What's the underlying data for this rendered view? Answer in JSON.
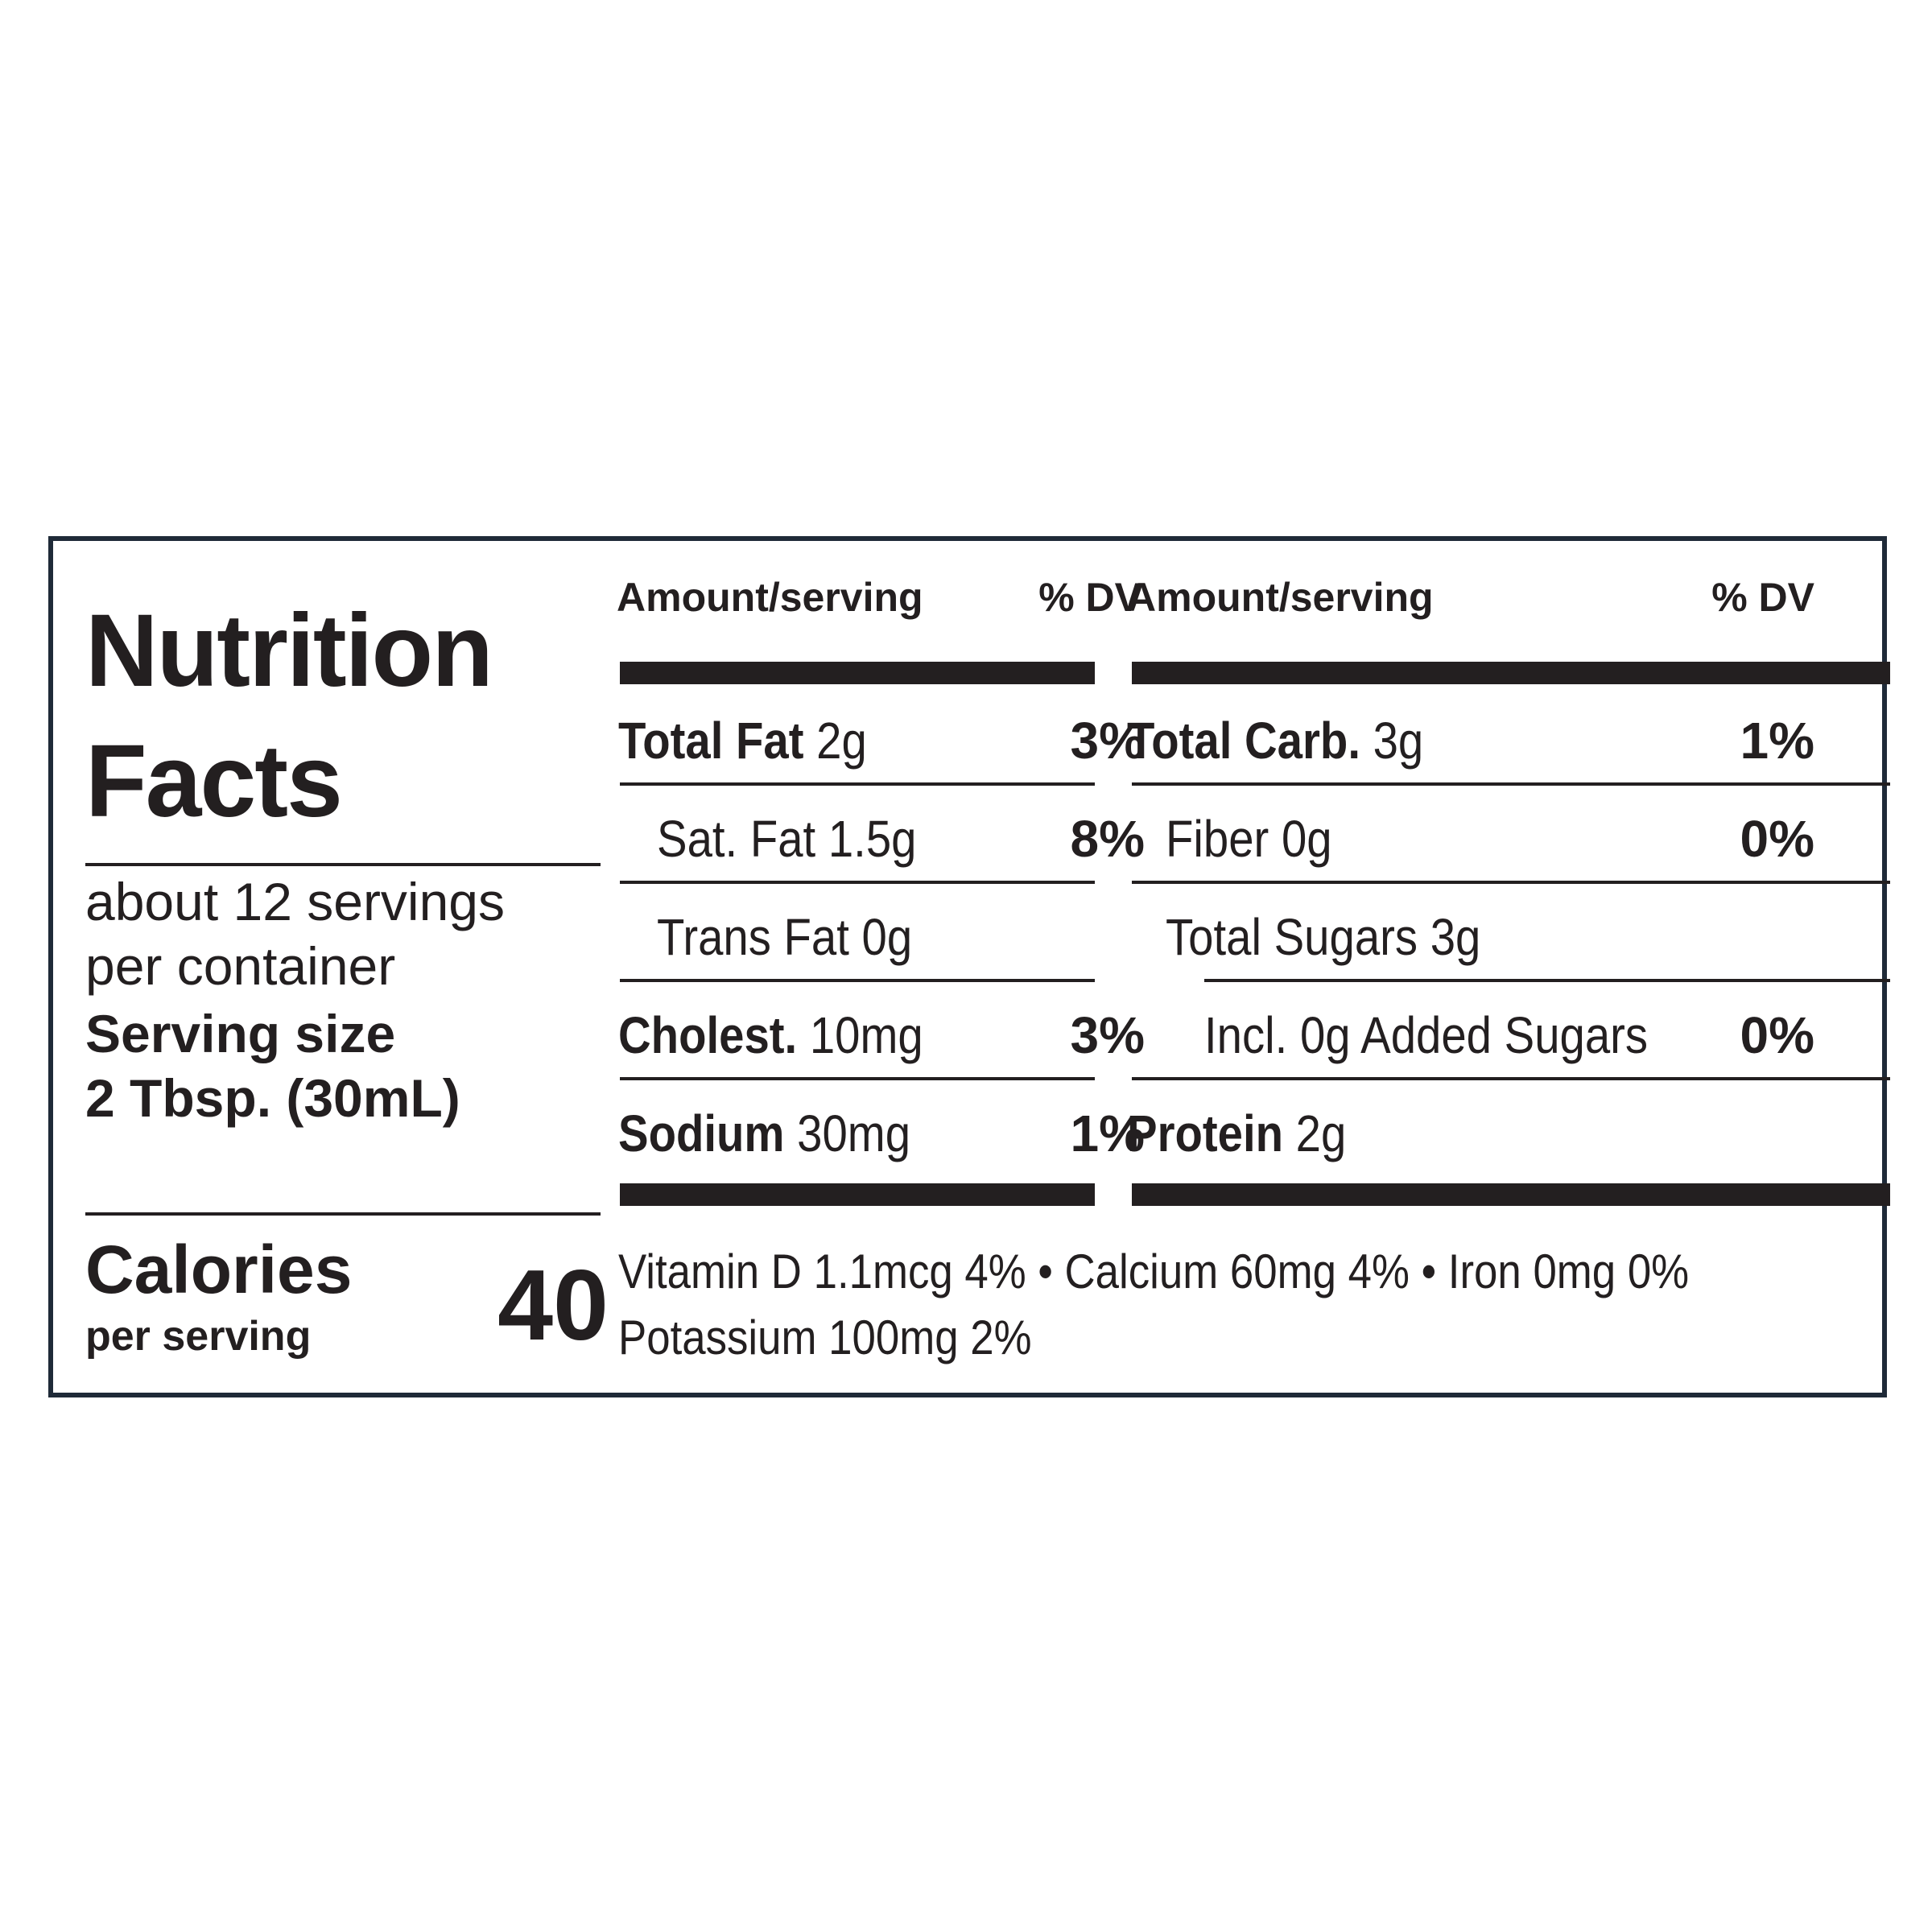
{
  "label": {
    "title_line1": "Nutrition",
    "title_line2": "Facts",
    "servings_line1": "about 12 servings",
    "servings_line2": "per container",
    "serving_size_label": "Serving size",
    "serving_size_value": "2 Tbsp. (30mL)",
    "calories_label": "Calories",
    "calories_sub": "per serving",
    "calories_value": "40"
  },
  "columns": {
    "left_header_amount": "Amount/serving",
    "left_header_dv": "% DV",
    "right_header_amount": "Amount/serving",
    "right_header_dv": "% DV"
  },
  "left_rows": [
    {
      "name": "Total Fat",
      "amount": "2g",
      "dv": "3%"
    },
    {
      "name": "Sat. Fat",
      "amount": "1.5g",
      "dv": "8%"
    },
    {
      "name": "Trans Fat",
      "amount": "0g",
      "dv": ""
    },
    {
      "name": "Cholest.",
      "amount": "10mg",
      "dv": "3%"
    },
    {
      "name": "Sodium",
      "amount": "30mg",
      "dv": "1%"
    }
  ],
  "right_rows": [
    {
      "name": "Total Carb.",
      "amount": "3g",
      "dv": "1%"
    },
    {
      "name": "Fiber",
      "amount": "0g",
      "dv": "0%"
    },
    {
      "name": "Total Sugars",
      "amount": "3g",
      "dv": ""
    },
    {
      "name": "Incl. 0g Added Sugars",
      "amount": "",
      "dv": "0%"
    },
    {
      "name": "Protein",
      "amount": "2g",
      "dv": ""
    }
  ],
  "footer": {
    "line1": "Vitamin D 1.1mcg 4%  •  Calcium 60mg 4%  •  Iron 0mg 0%",
    "line2": "Potassium 100mg 2%"
  }
}
